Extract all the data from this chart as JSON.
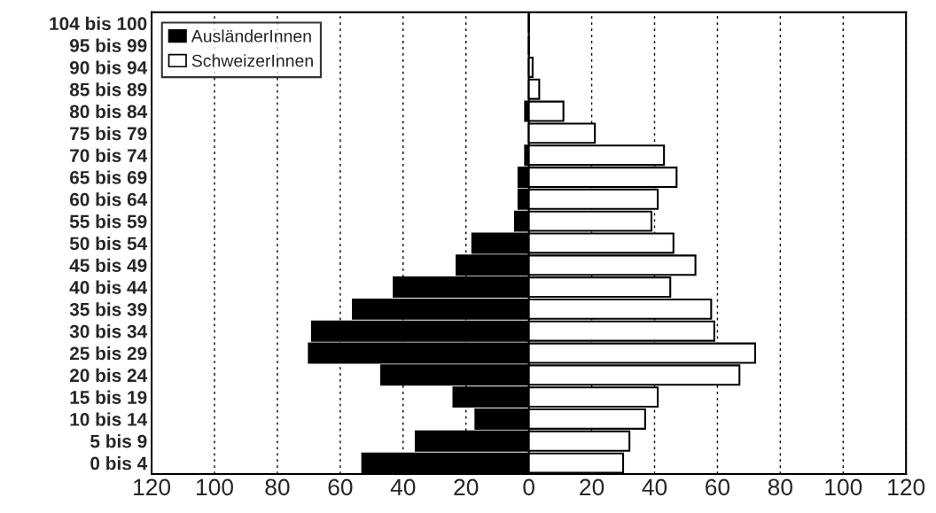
{
  "chart_data": {
    "type": "bar",
    "orientation": "horizontal",
    "categories": [
      "104 bis 100",
      "95 bis 99",
      "90 bis 94",
      "85 bis 89",
      "80 bis 84",
      "75 bis 79",
      "70 bis 74",
      "65 bis 69",
      "60 bis 64",
      "55 bis 59",
      "50 bis 54",
      "45 bis 49",
      "40 bis 44",
      "35 bis 39",
      "30 bis 34",
      "25 bis 29",
      "20 bis 24",
      "15 bis 19",
      "10 bis 14",
      "5 bis 9",
      "0 bis 4"
    ],
    "series": [
      {
        "name": "AusländerInnen",
        "color": "#000000",
        "values": [
          0,
          0,
          0,
          0,
          -1.2,
          0,
          -1.2,
          -3.3,
          -3.3,
          -4.4,
          -18,
          -23,
          -43,
          -56,
          -69,
          -70,
          -47,
          -24,
          -17,
          -36,
          -53
        ]
      },
      {
        "name": "SchweizerInnen",
        "color": "#ffffff",
        "values": [
          0,
          0,
          1.2,
          3.3,
          11,
          21,
          43,
          47,
          41,
          39,
          46,
          53,
          45,
          58,
          59,
          72,
          67,
          41,
          37,
          32,
          30
        ]
      }
    ],
    "xlim": [
      -120,
      120
    ],
    "xticks": [
      {
        "value": -120,
        "label": "120"
      },
      {
        "value": -100,
        "label": "100"
      },
      {
        "value": -80,
        "label": "80"
      },
      {
        "value": -60,
        "label": "60"
      },
      {
        "value": -40,
        "label": "40"
      },
      {
        "value": -20,
        "label": "20"
      },
      0,
      20,
      40,
      60,
      80,
      100,
      120
    ],
    "ref_lines": [
      {
        "axis": "x",
        "value": 0
      }
    ],
    "grid": "x",
    "legend": "top left",
    "stacked": true
  }
}
